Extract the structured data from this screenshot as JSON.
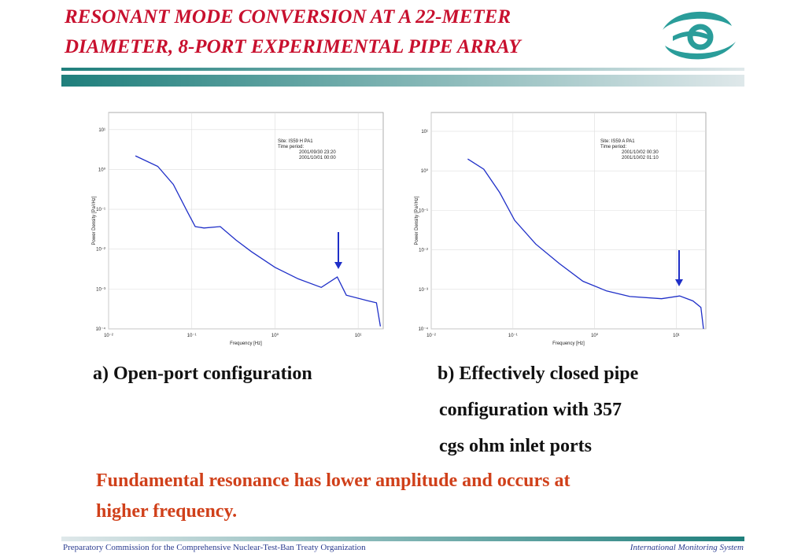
{
  "title": [
    "RESONANT MODE CONVERSION AT A 22-METER",
    "DIAMETER, 8-PORT EXPERIMENTAL PIPE ARRAY"
  ],
  "chart_data": [
    {
      "type": "line",
      "log_x": true,
      "log_y": true,
      "grid": true,
      "xlabel": "Frequency [Hz]",
      "ylabel": "Power Density [Pa²/Hz]",
      "annotations": [
        "Site: IS59 H PA1",
        "Time period:",
        "2001/09/30 23:20",
        "2001/10/01 00:00"
      ],
      "xlim": [
        0.01,
        20
      ],
      "ylim": [
        0.0001,
        27
      ],
      "xticks": [
        {
          "value": 0.01,
          "label": "10⁻²"
        },
        {
          "value": 0.1,
          "label": "10⁻¹"
        },
        {
          "value": 1,
          "label": "10⁰"
        },
        {
          "value": 10,
          "label": "10¹"
        }
      ],
      "yticks": [
        {
          "value": 0.0001,
          "label": "10⁻⁴"
        },
        {
          "value": 0.001,
          "label": "10⁻³"
        },
        {
          "value": 0.01,
          "label": "10⁻²"
        },
        {
          "value": 0.1,
          "label": "10⁻¹"
        },
        {
          "value": 1,
          "label": "10⁰"
        },
        {
          "value": 10,
          "label": "10¹"
        }
      ],
      "x": [
        0.021,
        0.039,
        0.06,
        0.089,
        0.11,
        0.14,
        0.22,
        0.34,
        0.52,
        1.0,
        1.9,
        3.6,
        5.6,
        7.2,
        13,
        16.6,
        18.5
      ],
      "series": [
        {
          "color": "#1f2fc8",
          "values": [
            2.2,
            1.2,
            0.42,
            0.085,
            0.037,
            0.034,
            0.037,
            0.017,
            0.0087,
            0.0035,
            0.0018,
            0.0011,
            0.002,
            0.0007,
            0.00051,
            0.00045,
            0.000115
          ]
        }
      ]
    },
    {
      "type": "line",
      "log_x": true,
      "log_y": true,
      "grid": true,
      "xlabel": "Frequency [Hz]",
      "ylabel": "Power Density [Pa²/Hz]",
      "annotations": [
        "Site: IS59 A PA1",
        "Time period:",
        "2001/10/02 00:30",
        "2001/10/02 01:10"
      ],
      "xlim": [
        0.01,
        23
      ],
      "ylim": [
        0.0001,
        30
      ],
      "xticks": [
        {
          "value": 0.01,
          "label": "10⁻²"
        },
        {
          "value": 0.1,
          "label": "10⁻¹"
        },
        {
          "value": 1,
          "label": "10⁰"
        },
        {
          "value": 10,
          "label": "10¹"
        }
      ],
      "yticks": [
        {
          "value": 0.0001,
          "label": "10⁻⁴"
        },
        {
          "value": 0.001,
          "label": "10⁻³"
        },
        {
          "value": 0.01,
          "label": "10⁻²"
        },
        {
          "value": 0.1,
          "label": "10⁻¹"
        },
        {
          "value": 1,
          "label": "10⁰"
        },
        {
          "value": 10,
          "label": "10¹"
        }
      ],
      "x": [
        0.028,
        0.044,
        0.069,
        0.105,
        0.19,
        0.37,
        0.72,
        1.4,
        2.7,
        6.6,
        11,
        16,
        20,
        21.5
      ],
      "series": [
        {
          "color": "#1f2fc8",
          "values": [
            2.0,
            1.1,
            0.28,
            0.056,
            0.014,
            0.0045,
            0.0016,
            0.00091,
            0.00066,
            0.00058,
            0.00068,
            0.00051,
            0.00035,
            0.0001
          ]
        }
      ]
    }
  ],
  "captions": {
    "a": "a) Open-port configuration",
    "b": [
      "b) Effectively closed pipe",
      "configuration with 357",
      "cgs ohm inlet ports"
    ]
  },
  "conclusion": [
    "Fundamental resonance has lower amplitude and occurs at",
    "higher frequency."
  ],
  "footer": {
    "left": "Preparatory Commission for the Comprehensive Nuclear-Test-Ban Treaty Organization",
    "right": "International Monitoring System"
  }
}
